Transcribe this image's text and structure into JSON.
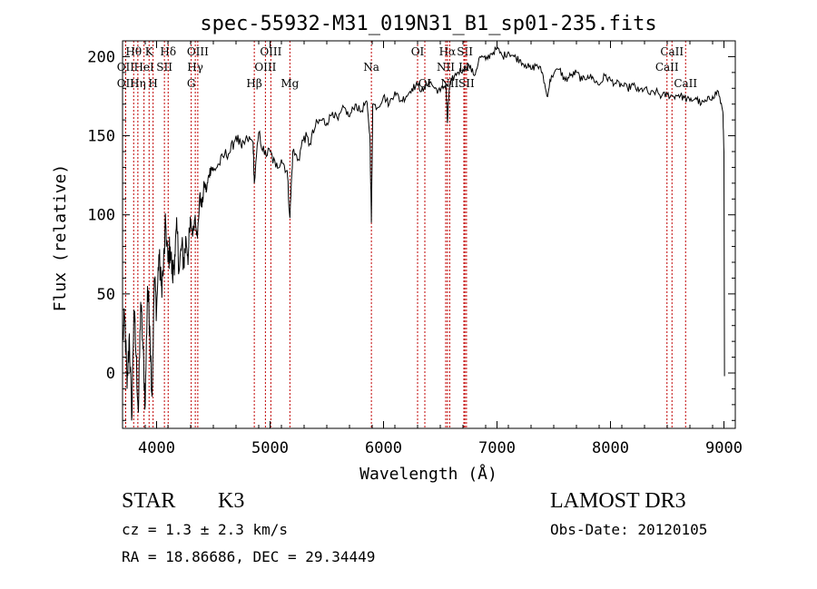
{
  "chart_data": {
    "type": "line",
    "title": "spec-55932-M31_019N31_B1_sp01-235.fits",
    "xlabel": "Wavelength (Å)",
    "ylabel": "Flux (relative)",
    "xlim": [
      3700,
      9100
    ],
    "ylim": [
      -35,
      210
    ],
    "xticks": [
      4000,
      5000,
      6000,
      7000,
      8000,
      9000
    ],
    "yticks": [
      0,
      50,
      100,
      150,
      200
    ],
    "grid": false,
    "series": [
      {
        "name": "flux",
        "x": [
          3700,
          3720,
          3740,
          3760,
          3780,
          3800,
          3820,
          3840,
          3860,
          3880,
          3900,
          3920,
          3940,
          3960,
          3980,
          4000,
          4020,
          4040,
          4060,
          4080,
          4100,
          4120,
          4140,
          4160,
          4180,
          4200,
          4220,
          4240,
          4260,
          4280,
          4300,
          4320,
          4340,
          4360,
          4380,
          4400,
          4420,
          4440,
          4460,
          4480,
          4500,
          4550,
          4600,
          4650,
          4700,
          4750,
          4800,
          4850,
          4861,
          4900,
          4950,
          5000,
          5050,
          5100,
          5150,
          5175,
          5200,
          5250,
          5300,
          5350,
          5400,
          5450,
          5500,
          5550,
          5600,
          5650,
          5700,
          5750,
          5800,
          5850,
          5880,
          5893,
          5905,
          5950,
          6000,
          6050,
          6100,
          6150,
          6200,
          6250,
          6300,
          6350,
          6400,
          6450,
          6500,
          6550,
          6563,
          6580,
          6600,
          6650,
          6700,
          6750,
          6800,
          6850,
          6900,
          6950,
          7000,
          7050,
          7100,
          7150,
          7200,
          7250,
          7300,
          7350,
          7400,
          7440,
          7480,
          7550,
          7600,
          7650,
          7700,
          7750,
          7800,
          7850,
          7900,
          7950,
          8000,
          8050,
          8100,
          8150,
          8200,
          8250,
          8300,
          8350,
          8400,
          8450,
          8500,
          8550,
          8600,
          8650,
          8700,
          8750,
          8800,
          8850,
          8900,
          8950,
          8990,
          9000,
          9005
        ],
        "values": [
          20,
          35,
          -10,
          25,
          -30,
          40,
          10,
          -25,
          45,
          15,
          -20,
          55,
          30,
          -15,
          60,
          40,
          75,
          55,
          65,
          95,
          70,
          80,
          60,
          75,
          90,
          65,
          80,
          70,
          85,
          75,
          95,
          88,
          100,
          85,
          112,
          105,
          120,
          115,
          125,
          130,
          128,
          132,
          138,
          140,
          150,
          142,
          148,
          146,
          120,
          152,
          138,
          140,
          130,
          135,
          128,
          98,
          140,
          135,
          150,
          145,
          156,
          160,
          158,
          165,
          160,
          168,
          162,
          170,
          165,
          172,
          150,
          95,
          170,
          168,
          175,
          170,
          178,
          172,
          175,
          180,
          182,
          178,
          185,
          180,
          178,
          183,
          158,
          180,
          185,
          190,
          192,
          195,
          188,
          200,
          198,
          202,
          205,
          200,
          203,
          200,
          198,
          195,
          192,
          195,
          190,
          175,
          188,
          192,
          185,
          188,
          190,
          185,
          188,
          186,
          182,
          188,
          185,
          183,
          182,
          180,
          182,
          178,
          180,
          176,
          178,
          175,
          176,
          175,
          176,
          174,
          172,
          174,
          170,
          172,
          175,
          178,
          165,
          140,
          -2
        ]
      }
    ],
    "line_markers": [
      {
        "label": "Hθ",
        "x": 3798,
        "row": 0
      },
      {
        "label": "OII",
        "x": 3727,
        "row": 1
      },
      {
        "label": "OII",
        "x": 3727,
        "row": 2
      },
      {
        "label": "K",
        "x": 3934,
        "row": 0
      },
      {
        "label": "HeI",
        "x": 3889,
        "row": 1
      },
      {
        "label": "Hη",
        "x": 3835,
        "row": 2
      },
      {
        "label": "Hδ",
        "x": 4102,
        "row": 0
      },
      {
        "label": "SII",
        "x": 4069,
        "row": 1
      },
      {
        "label": "H",
        "x": 3969,
        "row": 2
      },
      {
        "label": "OIII",
        "x": 4363,
        "row": 0
      },
      {
        "label": "Hγ",
        "x": 4341,
        "row": 1
      },
      {
        "label": "G",
        "x": 4305,
        "row": 2
      },
      {
        "label": "OIII",
        "x": 5007,
        "row": 0
      },
      {
        "label": "OIII",
        "x": 4959,
        "row": 1
      },
      {
        "label": "Hβ",
        "x": 4861,
        "row": 2
      },
      {
        "label": "Mg",
        "x": 5175,
        "row": 2
      },
      {
        "label": "Na",
        "x": 5893,
        "row": 1
      },
      {
        "label": "OI",
        "x": 6300,
        "row": 0
      },
      {
        "label": "OI",
        "x": 6364,
        "row": 2
      },
      {
        "label": "Hα",
        "x": 6563,
        "row": 0
      },
      {
        "label": "SII",
        "x": 6717,
        "row": 0
      },
      {
        "label": "NII",
        "x": 6548,
        "row": 1
      },
      {
        "label": "Li",
        "x": 6708,
        "row": 1
      },
      {
        "label": "NII",
        "x": 6583,
        "row": 2
      },
      {
        "label": "SII",
        "x": 6731,
        "row": 2
      },
      {
        "label": "CaII",
        "x": 8542,
        "row": 0
      },
      {
        "label": "CaII",
        "x": 8498,
        "row": 1
      },
      {
        "label": "CaII",
        "x": 8662,
        "row": 2
      }
    ]
  },
  "info": {
    "class_label": "STAR",
    "subclass": "K3",
    "survey": "LAMOST DR3",
    "redshift_line": "cz = 1.3 ± 2.3 km/s",
    "obs_date_line": "Obs-Date: 20120105",
    "coords_line": "RA =  18.86686, DEC =  29.34449"
  }
}
